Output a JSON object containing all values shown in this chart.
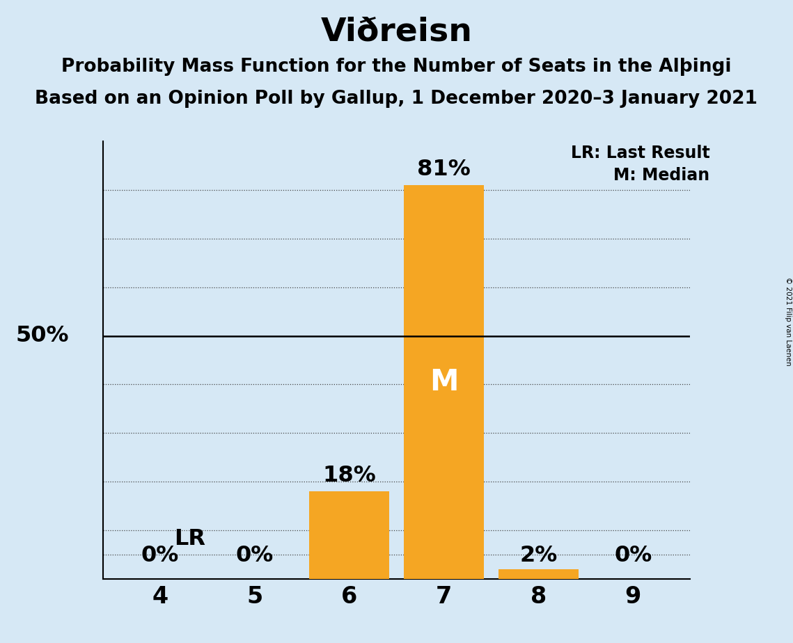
{
  "title": "Viðreisn",
  "subtitle1": "Probability Mass Function for the Number of Seats in the Alþingi",
  "subtitle2": "Based on an Opinion Poll by Gallup, 1 December 2020–3 January 2021",
  "copyright": "© 2021 Filip van Laenen",
  "seats": [
    4,
    5,
    6,
    7,
    8,
    9
  ],
  "probabilities": [
    0,
    0,
    18,
    81,
    2,
    0
  ],
  "bar_color": "#F5A623",
  "background_color": "#D6E8F5",
  "median_seat": 7,
  "last_result_seat": 4,
  "last_result_pct": 5,
  "ylim": [
    0,
    90
  ],
  "legend_lr": "LR: Last Result",
  "legend_m": "M: Median",
  "title_fontsize": 34,
  "subtitle_fontsize": 19,
  "label_fontsize": 23,
  "tick_fontsize": 24,
  "grid_lines": [
    10,
    20,
    30,
    40,
    50,
    60,
    70,
    80
  ]
}
